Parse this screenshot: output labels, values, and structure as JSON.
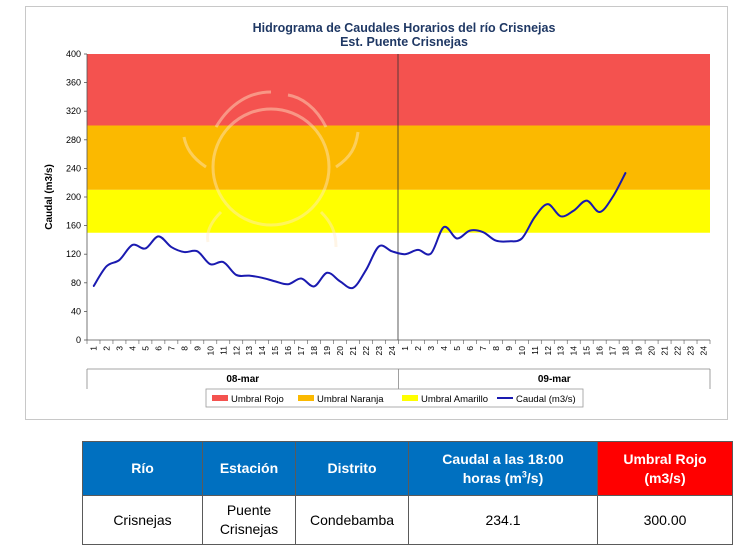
{
  "chart_data": {
    "type": "line",
    "title": "Hidrograma de Caudales Horarios del río Crisnejas",
    "subtitle": "Est. Puente Crisnejas",
    "ylabel": "Caudal  (m3/s)",
    "xlabel": "",
    "ylim": [
      0,
      400
    ],
    "yticks": [
      0,
      40,
      80,
      120,
      160,
      200,
      240,
      280,
      320,
      360,
      400
    ],
    "x_tick_labels": [
      "1",
      "2",
      "3",
      "4",
      "5",
      "6",
      "7",
      "8",
      "9",
      "10",
      "11",
      "12",
      "13",
      "14",
      "15",
      "16",
      "17",
      "18",
      "19",
      "20",
      "21",
      "22",
      "23",
      "24",
      "1",
      "2",
      "3",
      "4",
      "5",
      "6",
      "7",
      "8",
      "9",
      "10",
      "11",
      "12",
      "13",
      "14",
      "15",
      "16",
      "17",
      "18",
      "19",
      "20",
      "21",
      "22",
      "23",
      "24"
    ],
    "date_groups": [
      {
        "label": "08-mar",
        "start_index": 0,
        "end_index": 23
      },
      {
        "label": "09-mar",
        "start_index": 24,
        "end_index": 47
      }
    ],
    "grid": false,
    "legend_position": "bottom",
    "thresholds": [
      {
        "name": "Umbral Rojo",
        "from": 300,
        "to": 400,
        "color": "#f4524f"
      },
      {
        "name": "Umbral Naranja",
        "from": 210,
        "to": 300,
        "color": "#fbb900"
      },
      {
        "name": "Umbral Amarillo",
        "from": 150,
        "to": 210,
        "color": "#ffff00"
      }
    ],
    "series": [
      {
        "name": "Caudal (m3/s)",
        "color": "#1a1ab0",
        "values": [
          75,
          103,
          112,
          133,
          128,
          145,
          130,
          123,
          124,
          106,
          109,
          91,
          90,
          87,
          82,
          78,
          86,
          75,
          94,
          82,
          73,
          98,
          131,
          124,
          120,
          126,
          121,
          158,
          142,
          153,
          151,
          139,
          138,
          142,
          172,
          190,
          173,
          181,
          195,
          179,
          200,
          234.1
        ]
      }
    ]
  },
  "legend": {
    "items": [
      {
        "label": "Umbral Rojo",
        "color": "#f4524f",
        "kind": "box"
      },
      {
        "label": "Umbral Naranja",
        "color": "#fbb900",
        "kind": "box"
      },
      {
        "label": "Umbral Amarillo",
        "color": "#ffff00",
        "kind": "box"
      },
      {
        "label": "Caudal (m3/s)",
        "color": "#1a1ab0",
        "kind": "line"
      }
    ]
  },
  "table": {
    "headers": {
      "rio": "Río",
      "estacion": "Estación",
      "distrito": "Distrito",
      "caudal_line1": "Caudal a las 18:00",
      "caudal_line2a": "horas (m",
      "caudal_sup": "3",
      "caudal_line2b": "/s)",
      "umbral_line1": "Umbral Rojo",
      "umbral_line2": "(m3/s)"
    },
    "row": {
      "rio": "Crisnejas",
      "estacion_line1": "Puente",
      "estacion_line2": "Crisnejas",
      "distrito": "Condebamba",
      "caudal": "234.1",
      "umbral": "300.00"
    }
  }
}
